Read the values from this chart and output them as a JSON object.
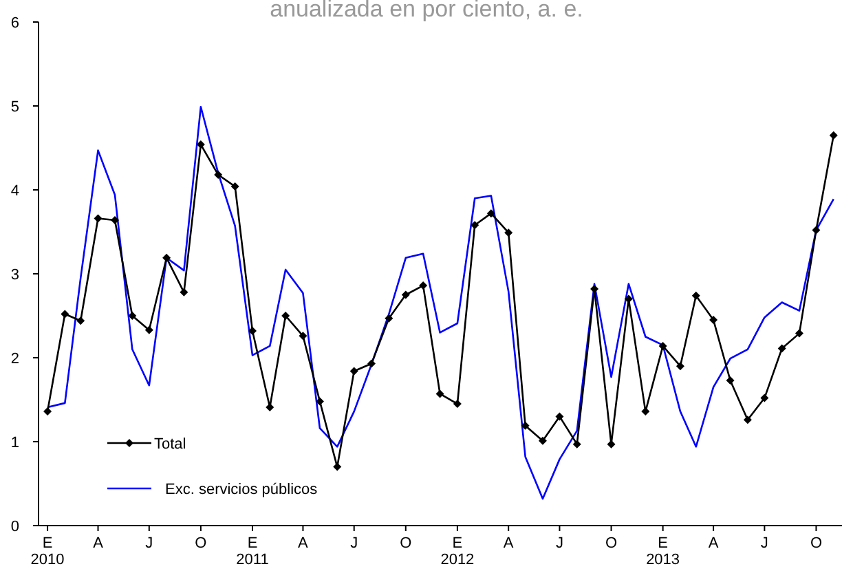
{
  "chart_data": {
    "type": "line",
    "title": "anualizada en por ciento, a. e.",
    "x": [
      "2010-01",
      "2010-02",
      "2010-03",
      "2010-04",
      "2010-05",
      "2010-06",
      "2010-07",
      "2010-08",
      "2010-09",
      "2010-10",
      "2010-11",
      "2010-12",
      "2011-01",
      "2011-02",
      "2011-03",
      "2011-04",
      "2011-05",
      "2011-06",
      "2011-07",
      "2011-08",
      "2011-09",
      "2011-10",
      "2011-11",
      "2011-12",
      "2012-01",
      "2012-02",
      "2012-03",
      "2012-04",
      "2012-05",
      "2012-06",
      "2012-07",
      "2012-08",
      "2012-09",
      "2012-10",
      "2012-11",
      "2012-12",
      "2013-01",
      "2013-02",
      "2013-03",
      "2013-04",
      "2013-05",
      "2013-06",
      "2013-07",
      "2013-08",
      "2013-09",
      "2013-10",
      "2013-11"
    ],
    "series": [
      {
        "name": "Total",
        "color": "#000000",
        "marker": "diamond",
        "values": [
          1.36,
          2.52,
          2.44,
          3.66,
          3.64,
          2.5,
          2.33,
          3.19,
          2.78,
          4.54,
          4.18,
          4.04,
          2.32,
          1.41,
          2.5,
          2.26,
          1.48,
          0.7,
          1.84,
          1.93,
          2.47,
          2.75,
          2.86,
          1.57,
          1.45,
          3.58,
          3.72,
          3.49,
          1.19,
          1.01,
          1.3,
          0.97,
          2.82,
          0.97,
          2.7,
          1.36,
          2.14,
          1.9,
          2.74,
          2.45,
          1.73,
          1.26,
          1.52,
          2.11,
          2.29,
          3.52,
          4.65
        ]
      },
      {
        "name": "Exc. servicios públicos",
        "color": "#0000ff",
        "marker": "none",
        "values": [
          1.41,
          1.46,
          2.95,
          4.47,
          3.94,
          2.1,
          1.67,
          3.19,
          3.04,
          4.99,
          4.2,
          3.57,
          2.03,
          2.14,
          3.05,
          2.77,
          1.16,
          0.94,
          1.36,
          1.92,
          2.52,
          3.19,
          3.24,
          2.3,
          2.41,
          3.9,
          3.93,
          2.79,
          0.82,
          0.32,
          0.79,
          1.13,
          2.88,
          1.77,
          2.88,
          2.25,
          2.15,
          1.36,
          0.94,
          1.65,
          1.99,
          2.1,
          2.48,
          2.66,
          2.56,
          3.52,
          3.89
        ]
      }
    ],
    "xlim": [
      "2009-12-16",
      "2013-11-16"
    ],
    "xticks": [
      {
        "value": "2010-01",
        "label": "E\n2010"
      },
      {
        "value": "2010-04",
        "label": "A"
      },
      {
        "value": "2010-07",
        "label": "J"
      },
      {
        "value": "2010-10",
        "label": "O"
      },
      {
        "value": "2011-01",
        "label": "E\n2011"
      },
      {
        "value": "2011-04",
        "label": "A"
      },
      {
        "value": "2011-07",
        "label": "J"
      },
      {
        "value": "2011-10",
        "label": "O"
      },
      {
        "value": "2012-01",
        "label": "E\n2012"
      },
      {
        "value": "2012-04",
        "label": "A"
      },
      {
        "value": "2012-07",
        "label": "J"
      },
      {
        "value": "2012-10",
        "label": "O"
      },
      {
        "value": "2013-01",
        "label": "E\n2013"
      },
      {
        "value": "2013-04",
        "label": "A"
      },
      {
        "value": "2013-07",
        "label": "J"
      },
      {
        "value": "2013-10",
        "label": "O"
      }
    ],
    "ylim": [
      0,
      6
    ],
    "yticks": [
      0,
      1,
      2,
      3,
      4,
      5,
      6
    ],
    "grid": false,
    "legend": "bottom left",
    "line_style": "solid"
  }
}
